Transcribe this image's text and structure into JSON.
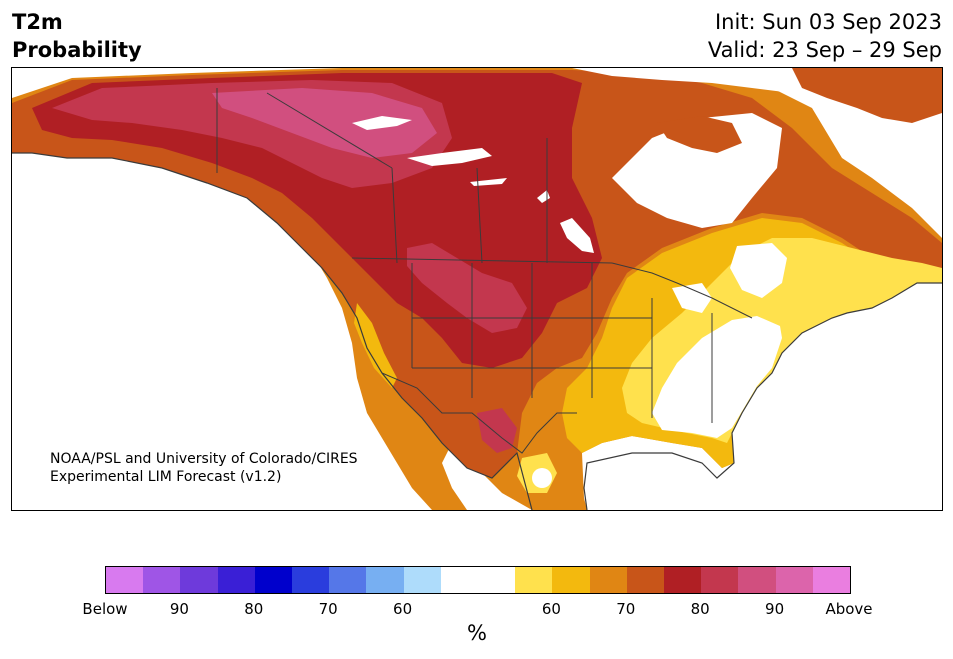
{
  "title": {
    "left_line1": "T2m",
    "left_line2": "Probability"
  },
  "dates": {
    "init": "Init: Sun 03 Sep 2023",
    "valid": "Valid: 23 Sep – 29 Sep"
  },
  "credit": {
    "line1": "NOAA/PSL and University of Colorado/CIRES",
    "line2": "Experimental LIM Forecast (v1.2)"
  },
  "colorbar": {
    "colors": [
      "#d87aef",
      "#9f55e6",
      "#6e3adb",
      "#3a1fd6",
      "#0000cc",
      "#2a3ddd",
      "#5577e8",
      "#77aff2",
      "#aedcfb",
      "#ffffff",
      "#ffffff",
      "#ffe14d",
      "#f3b90e",
      "#e08614",
      "#c85519",
      "#b01f24",
      "#c3374e",
      "#d14f7f",
      "#dc64ab",
      "#ea7ee0"
    ],
    "ticks": [
      "Below",
      "90",
      "80",
      "70",
      "60",
      "60",
      "70",
      "80",
      "90",
      "Above"
    ],
    "unit": "%"
  },
  "palette": {
    "above90": "#d14f7f",
    "above80": "#c3374e",
    "above75": "#b01f24",
    "above70": "#c85519",
    "above65": "#e08614",
    "above60": "#f3b90e",
    "above55": "#ffe14d",
    "neutral": "#ffffff",
    "border": "#3b3b3b"
  }
}
